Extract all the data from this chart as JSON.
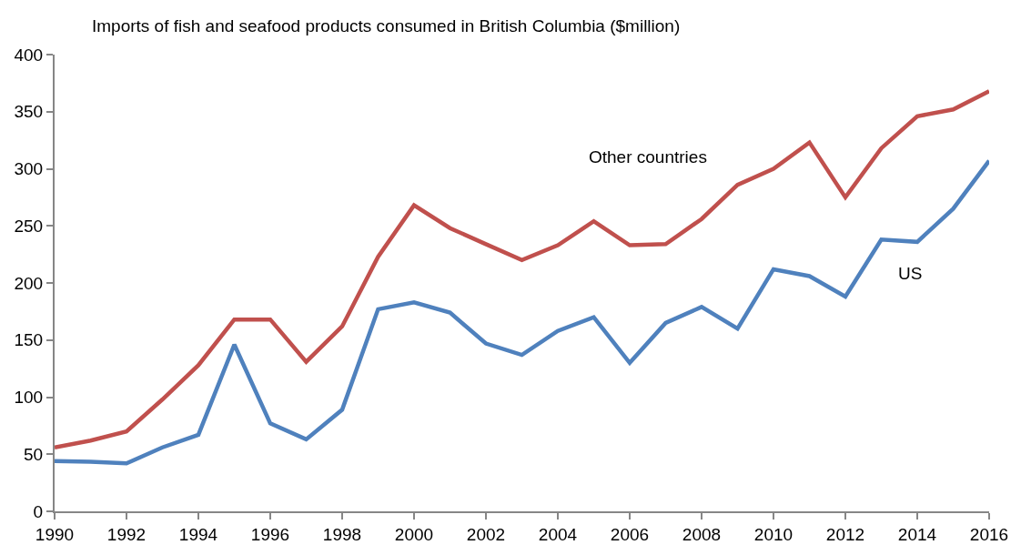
{
  "chart_data": {
    "type": "line",
    "title": "Imports of fish and seafood products consumed in British Columbia ($million)",
    "x": [
      1990,
      1991,
      1992,
      1993,
      1994,
      1995,
      1996,
      1997,
      1998,
      1999,
      2000,
      2001,
      2002,
      2003,
      2004,
      2005,
      2006,
      2007,
      2008,
      2009,
      2010,
      2011,
      2012,
      2013,
      2014,
      2015,
      2016
    ],
    "series": [
      {
        "name": "Other countries",
        "color": "#c0504d",
        "values": [
          56,
          62,
          70,
          98,
          128,
          168,
          168,
          131,
          162,
          223,
          268,
          248,
          234,
          220,
          233,
          254,
          233,
          234,
          256,
          286,
          300,
          323,
          275,
          318,
          346,
          352,
          368
        ]
      },
      {
        "name": "US",
        "color": "#4f81bd",
        "values": [
          44,
          43.5,
          42,
          56,
          67,
          146,
          77,
          63,
          89,
          177,
          183,
          174,
          147,
          137,
          158,
          170,
          130,
          165,
          179,
          160,
          212,
          206,
          188,
          238,
          236,
          265,
          307
        ]
      }
    ],
    "xlim": [
      1990,
      2016
    ],
    "xticks": [
      1990,
      1992,
      1994,
      1996,
      1998,
      2000,
      2002,
      2004,
      2006,
      2008,
      2010,
      2012,
      2014,
      2016
    ],
    "ylim": [
      0,
      400
    ],
    "yticks": [
      0,
      50,
      100,
      150,
      200,
      250,
      300,
      350,
      400
    ],
    "legend": false,
    "marker": "none",
    "line_style": "solid"
  }
}
